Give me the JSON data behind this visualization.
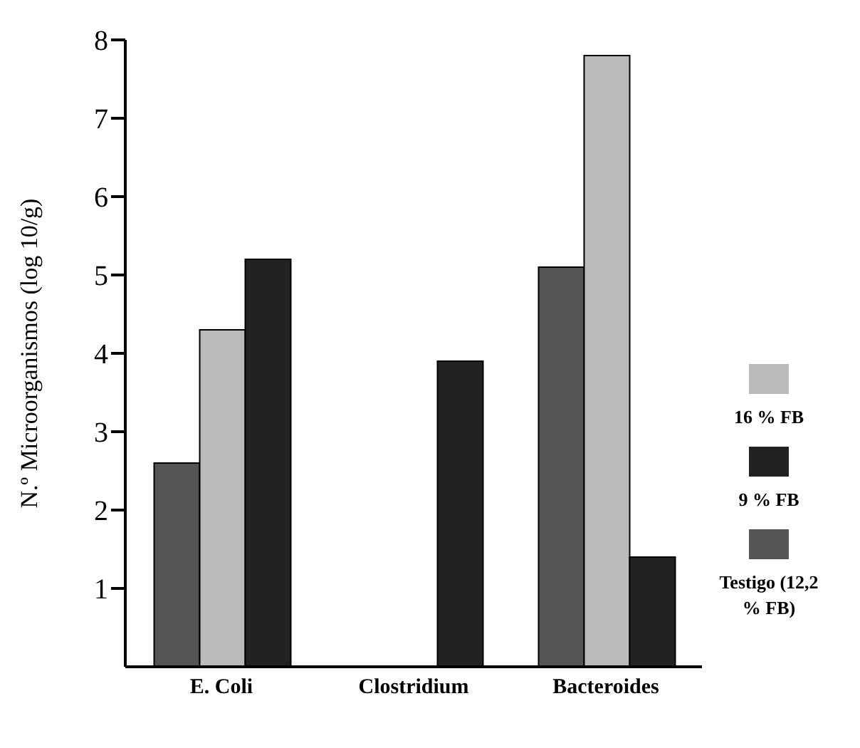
{
  "chart_data": {
    "type": "bar",
    "ylabel": "N.º Microorganismos (log 10/g)",
    "categories": [
      "E. Coli",
      "Clostridium",
      "Bacteroides"
    ],
    "series": [
      {
        "name": "Testigo (12,2 % FB)",
        "color": "#555555",
        "values": [
          2.6,
          null,
          5.1
        ]
      },
      {
        "name": "16 % FB",
        "color": "#bbbbbb",
        "values": [
          4.3,
          null,
          7.8
        ]
      },
      {
        "name": "9 % FB",
        "color": "#222222",
        "values": [
          5.2,
          3.9,
          1.4
        ]
      }
    ],
    "ylim": [
      0,
      8
    ],
    "yticks": [
      1,
      2,
      3,
      4,
      5,
      6,
      7,
      8
    ],
    "legend": "right",
    "grid": false
  }
}
